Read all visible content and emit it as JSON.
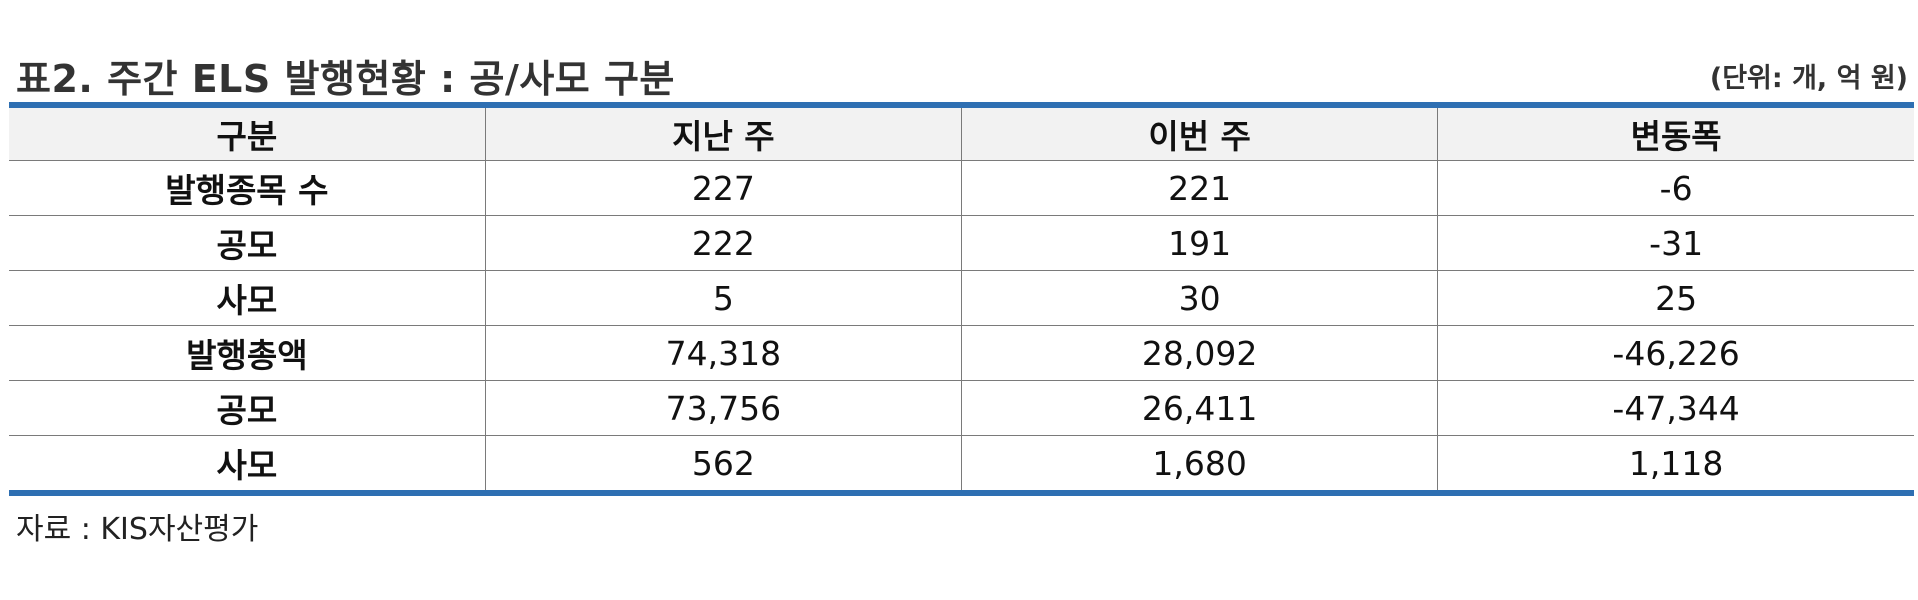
{
  "header": {
    "title": "표2. 주간 ELS 발행현황 : 공/사모 구분",
    "unit": "(단위: 개, 억 원)"
  },
  "table": {
    "columns": [
      "구분",
      "지난 주",
      "이번 주",
      "변동폭"
    ],
    "rows": [
      {
        "label": "발행종목 수",
        "last_week": "227",
        "this_week": "221",
        "change": "-6"
      },
      {
        "label": "공모",
        "last_week": "222",
        "this_week": "191",
        "change": "-31"
      },
      {
        "label": "사모",
        "last_week": "5",
        "this_week": "30",
        "change": "25"
      },
      {
        "label": "발행총액",
        "last_week": "74,318",
        "this_week": "28,092",
        "change": "-46,226"
      },
      {
        "label": "공모",
        "last_week": "73,756",
        "this_week": "26,411",
        "change": "-47,344"
      },
      {
        "label": "사모",
        "last_week": "562",
        "this_week": "1,680",
        "change": "1,118"
      }
    ]
  },
  "footer": {
    "source": "자료 : KIS자산평가"
  },
  "colors": {
    "accent_rule": "#2e6fb2",
    "negative": "#1010ee",
    "positive": "#ee1111",
    "header_bg": "#f2f2f2"
  }
}
